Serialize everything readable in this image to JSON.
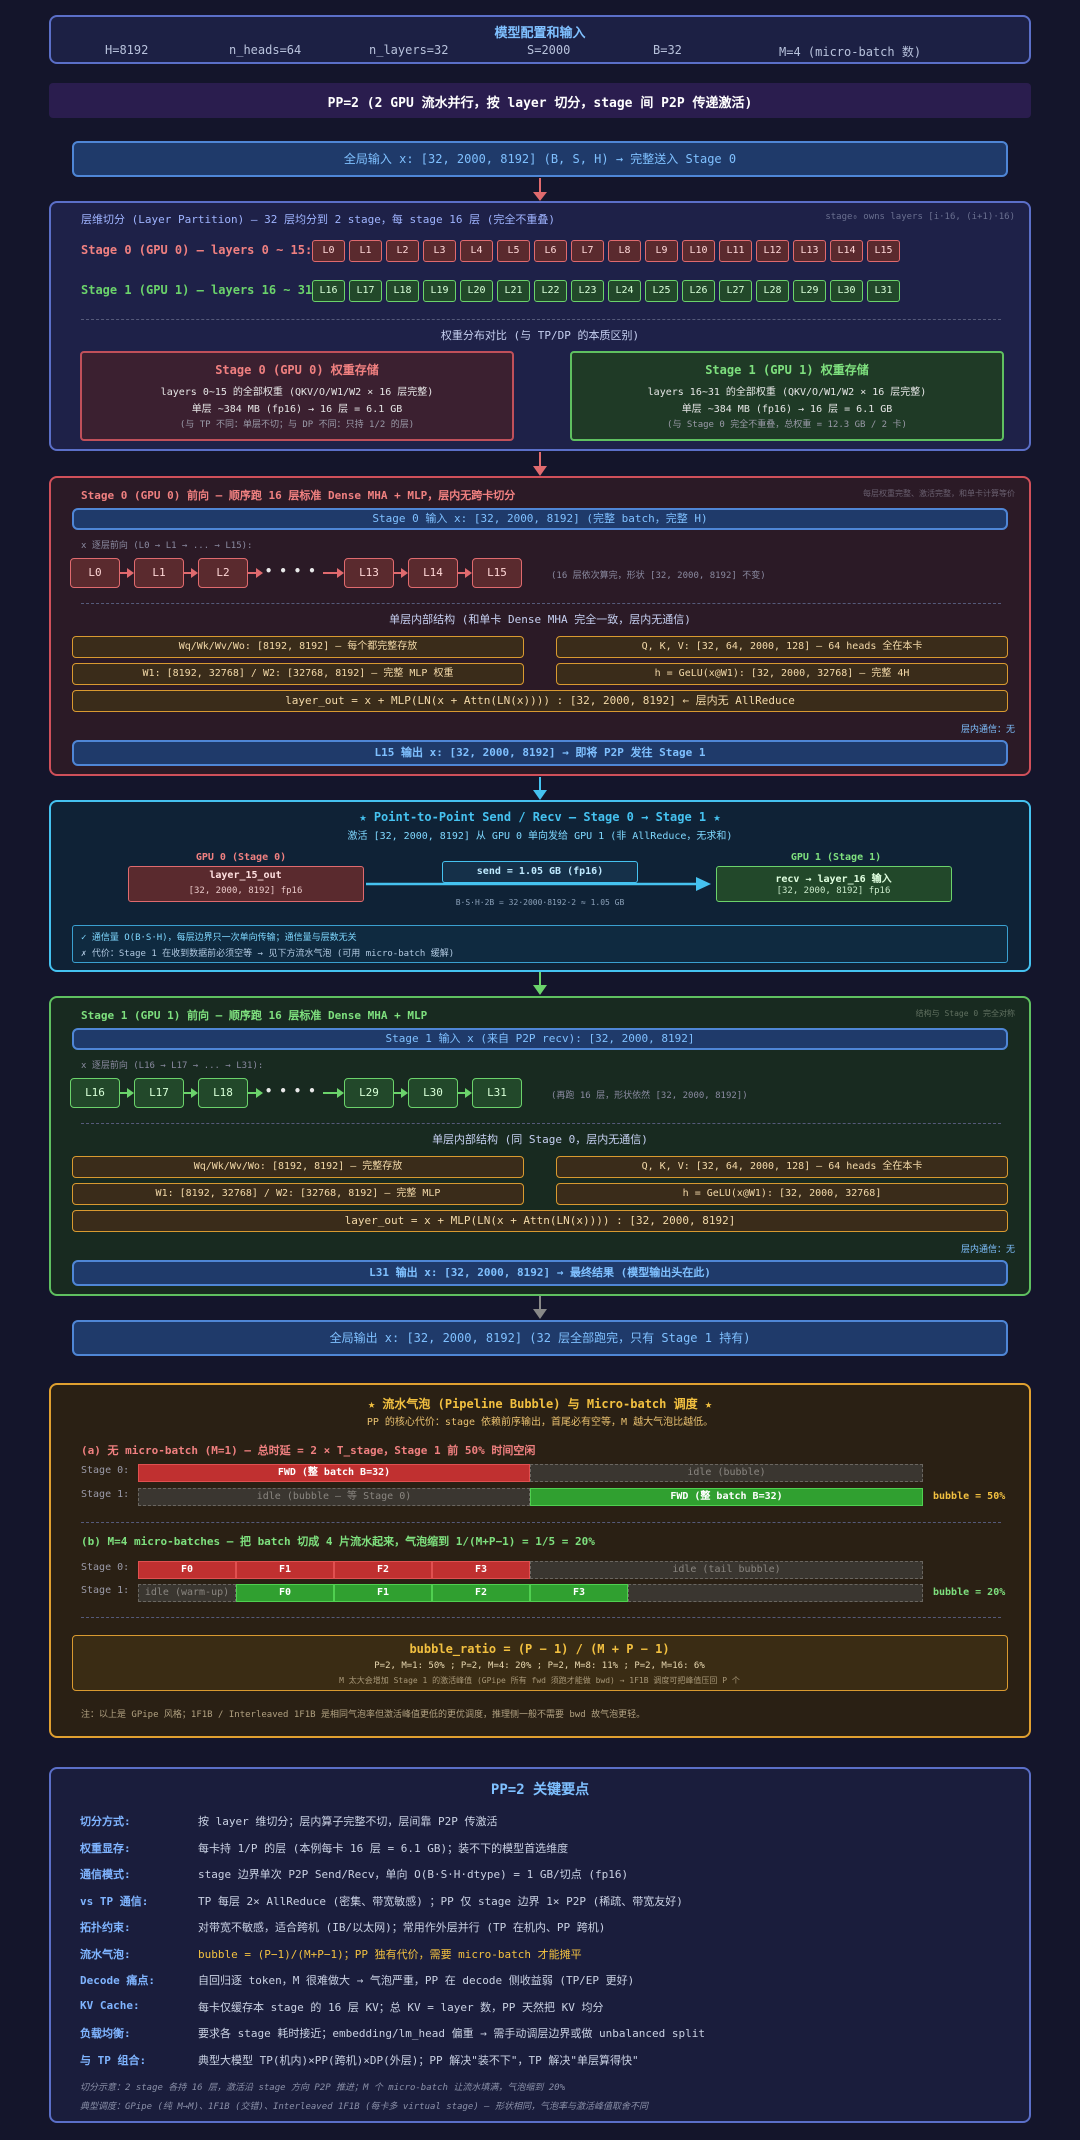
{
  "header": {
    "title": "模型配置和输入",
    "params": [
      "H=8192",
      "n_heads=64",
      "n_layers=32",
      "S=2000",
      "B=32",
      "M=4 (micro-batch 数)"
    ]
  },
  "pp_title": "PP=2 (2 GPU 流水并行，按 layer 切分，stage 间 P2P 传递激活)",
  "global_input": "全局输入 x: [32, 2000, 8192] (B, S, H) → 完整送入 Stage 0",
  "partition": {
    "title": "层维切分 (Layer Partition) — 32 层均分到 2 stage，每 stage 16 层 (完全不重叠)",
    "note": "stage₀ owns layers [i·16, (i+1)·16)",
    "stage0_label": "Stage 0 (GPU 0) — layers 0 ~ 15:",
    "stage1_label": "Stage 1 (GPU 1) — layers 16 ~ 31:",
    "stage0_layers": [
      "L0",
      "L1",
      "L2",
      "L3",
      "L4",
      "L5",
      "L6",
      "L7",
      "L8",
      "L9",
      "L10",
      "L11",
      "L12",
      "L13",
      "L14",
      "L15"
    ],
    "stage1_layers": [
      "L16",
      "L17",
      "L18",
      "L19",
      "L20",
      "L21",
      "L22",
      "L23",
      "L24",
      "L25",
      "L26",
      "L27",
      "L28",
      "L29",
      "L30",
      "L31"
    ],
    "compare_title": "权重分布对比 (与 TP/DP 的本质区别)",
    "s0_box": {
      "title": "Stage 0 (GPU 0) 权重存储",
      "l1": "layers 0~15 的全部权重 (QKV/O/W1/W2 × 16 层完整)",
      "l2": "单层 ~384 MB (fp16) → 16 层 = 6.1 GB",
      "l3": "(与 TP 不同：单层不切；与 DP 不同：只持 1/2 的层)"
    },
    "s1_box": {
      "title": "Stage 1 (GPU 1) 权重存储",
      "l1": "layers 16~31 的全部权重 (QKV/O/W1/W2 × 16 层完整)",
      "l2": "单层 ~384 MB (fp16) → 16 层 = 6.1 GB",
      "l3": "(与 Stage 0 完全不重叠，总权重 = 12.3 GB / 2 卡)"
    }
  },
  "stage0_fwd": {
    "title": "Stage 0 (GPU 0) 前向 — 顺序跑 16 层标准 Dense MHA + MLP，层内无跨卡切分",
    "note": "每层权重完整、激活完整，和单卡计算等价",
    "input": "Stage 0 输入 x: [32, 2000, 8192] (完整 batch，完整 H)",
    "seq_label": "x 逐层前向 (L0 → L1 → ... → L15):",
    "nodes": [
      "L0",
      "L1",
      "L2",
      "L13",
      "L14",
      "L15"
    ],
    "dots": "• • • •",
    "seq_note": "(16 层依次算完，形状 [32, 2000, 8192] 不变)",
    "inner_title": "单层内部结构 (和单卡 Dense MHA 完全一致，层内无通信)",
    "w1": "Wq/Wk/Wv/Wo: [8192, 8192] — 每个都完整存放",
    "w2": "W1: [8192, 32768] / W2: [32768, 8192] — 完整 MLP 权重",
    "q1": "Q, K, V: [32, 64, 2000, 128] — 64 heads 全在本卡",
    "q2": "h = GeLU(x@W1): [32, 2000, 32768] — 完整 4H",
    "formula": "layer_out = x + MLP(LN(x + Attn(LN(x)))) : [32, 2000, 8192] ← 层内无 AllReduce",
    "comm": "层内通信：无",
    "output": "L15 输出 x: [32, 2000, 8192] → 即将 P2P 发往 Stage 1"
  },
  "p2p": {
    "title": "★ Point-to-Point Send / Recv — Stage 0 → Stage 1 ★",
    "subtitle": "激活 [32, 2000, 8192] 从 GPU 0 单向发给 GPU 1 (非 AllReduce，无求和)",
    "gpu0": "GPU 0 (Stage 0)",
    "gpu1": "GPU 1 (Stage 1)",
    "box0_l1": "layer_15_out",
    "box0_l2": "[32, 2000, 8192] fp16",
    "send": "send = 1.05 GB (fp16)",
    "calc": "B·S·H·2B = 32·2000·8192·2 ≈ 1.05 GB",
    "box1_l1": "recv → layer_16 输入",
    "box1_l2": "[32, 2000, 8192] fp16",
    "pro": "✓ 通信量 O(B·S·H)，每层边界只一次单向传输；通信量与层数无关",
    "con": "✗ 代价：Stage 1 在收到数据前必须空等 → 见下方流水气泡 (可用 micro-batch 缓解)"
  },
  "stage1_fwd": {
    "title": "Stage 1 (GPU 1) 前向 — 顺序跑 16 层标准 Dense MHA + MLP",
    "note": "结构与 Stage 0 完全对称",
    "input": "Stage 1 输入 x (来自 P2P recv): [32, 2000, 8192]",
    "seq_label": "x 逐层前向 (L16 → L17 → ... → L31):",
    "nodes": [
      "L16",
      "L17",
      "L18",
      "L29",
      "L30",
      "L31"
    ],
    "dots": "• • • •",
    "seq_note": "(再跑 16 层，形状依然 [32, 2000, 8192])",
    "inner_title": "单层内部结构 (同 Stage 0，层内无通信)",
    "w1": "Wq/Wk/Wv/Wo: [8192, 8192] — 完整存放",
    "w2": "W1: [8192, 32768] / W2: [32768, 8192] — 完整 MLP",
    "q1": "Q, K, V: [32, 64, 2000, 128] — 64 heads 全在本卡",
    "q2": "h = GeLU(x@W1): [32, 2000, 32768]",
    "formula": "layer_out = x + MLP(LN(x + Attn(LN(x)))) : [32, 2000, 8192]",
    "comm": "层内通信：无",
    "output": "L31 输出 x: [32, 2000, 8192] → 最终结果 (模型输出头在此)"
  },
  "global_output": "全局输出 x: [32, 2000, 8192] (32 层全部跑完，只有 Stage 1 持有)",
  "bubble": {
    "title": "★ 流水气泡 (Pipeline Bubble) 与 Micro-batch 调度 ★",
    "subtitle": "PP 的核心代价：stage 依赖前序输出，首尾必有空等，M 越大气泡比越低。",
    "a_title": "(a) 无 micro-batch (M=1) — 总时延 = 2 × T_stage，Stage 1 前 50% 时间空闲",
    "stage0": "Stage 0:",
    "stage1": "Stage 1:",
    "a_s0_fwd": "FWD (整 batch B=32)",
    "a_s0_idle": "idle (bubble)",
    "a_s1_idle": "idle (bubble — 等 Stage 0)",
    "a_s1_fwd": "FWD (整 batch B=32)",
    "a_ratio": "bubble = 50%",
    "b_title": "(b) M=4 micro-batches — 把 batch 切成 4 片流水起来，气泡缩到 1/(M+P−1) = 1/5 = 20%",
    "b_s0": [
      "F0",
      "F1",
      "F2",
      "F3"
    ],
    "b_s0_idle": "idle (tail bubble)",
    "b_s1_idle": "idle (warm-up)",
    "b_s1": [
      "F0",
      "F1",
      "F2",
      "F3"
    ],
    "b_ratio": "bubble = 20%",
    "formula": "bubble_ratio = (P − 1) / (M + P − 1)",
    "examples": "P=2, M=1: 50% ; P=2, M=4: 20% ; P=2, M=8: 11% ; P=2, M=16: 6%",
    "formula_note": "M 太大会增加 Stage 1 的激活峰值 (GPipe 所有 fwd 须跑才能做 bwd) → 1F1B 调度可把峰值压回 P 个",
    "footnote": "注：以上是 GPipe 风格；1F1B / Interleaved 1F1B 是相同气泡率但激活峰值更低的更优调度，推理侧一般不需要 bwd 故气泡更轻。"
  },
  "summary": {
    "title": "PP=2 关键要点",
    "rows": [
      {
        "k": "切分方式:",
        "v": "按 layer 维切分；层内算子完整不切，层间靠 P2P 传激活"
      },
      {
        "k": "权重显存:",
        "v": "每卡持 1/P 的层 (本例每卡 16 层 = 6.1 GB)；装不下的模型首选维度"
      },
      {
        "k": "通信模式:",
        "v": "stage 边界单次 P2P Send/Recv，单向 O(B·S·H·dtype) = 1 GB/切点 (fp16)"
      },
      {
        "k": "vs TP 通信:",
        "v": "TP 每层 2× AllReduce (密集、带宽敏感) ；PP 仅 stage 边界 1× P2P (稀疏、带宽友好)"
      },
      {
        "k": "拓扑约束:",
        "v": "对带宽不敏感，适合跨机 (IB/以太网)；常用作外层并行 (TP 在机内、PP 跨机)"
      },
      {
        "k": "流水气泡:",
        "v": "bubble = (P−1)/(M+P−1)；PP 独有代价，需要 micro-batch 才能摊平"
      },
      {
        "k": "Decode 痛点:",
        "v": "自回归逐 token，M 很难做大 → 气泡严重，PP 在 decode 侧收益弱 (TP/EP 更好)"
      },
      {
        "k": "KV Cache:",
        "v": "每卡仅缓存本 stage 的 16 层 KV；总 KV = layer 数，PP 天然把 KV 均分"
      },
      {
        "k": "负载均衡:",
        "v": "要求各 stage 耗时接近；embedding/lm_head 偏重 → 需手动调层边界或做 unbalanced split"
      },
      {
        "k": "与 TP 组合:",
        "v": "典型大模型 TP(机内)×PP(跨机)×DP(外层)；PP 解决\"装不下\"，TP 解决\"单层算得快\""
      }
    ],
    "note1": "切分示意：2 stage 各持 16 层，激活沿 stage 方向 P2P 推进；M 个 micro-batch 让流水填满，气泡缩到 20%",
    "note2": "典型调度：GPipe (纯 M→M)、1F1B (交错)、Interleaved 1F1B (每卡多 virtual stage) — 形状相同，气泡率与激活峰值取舍不同"
  },
  "colors": {
    "blue": "#4f86d6",
    "red": "#e06a6e",
    "green": "#6bd36b",
    "cyan": "#45c2f0",
    "orange": "#e0a030"
  }
}
